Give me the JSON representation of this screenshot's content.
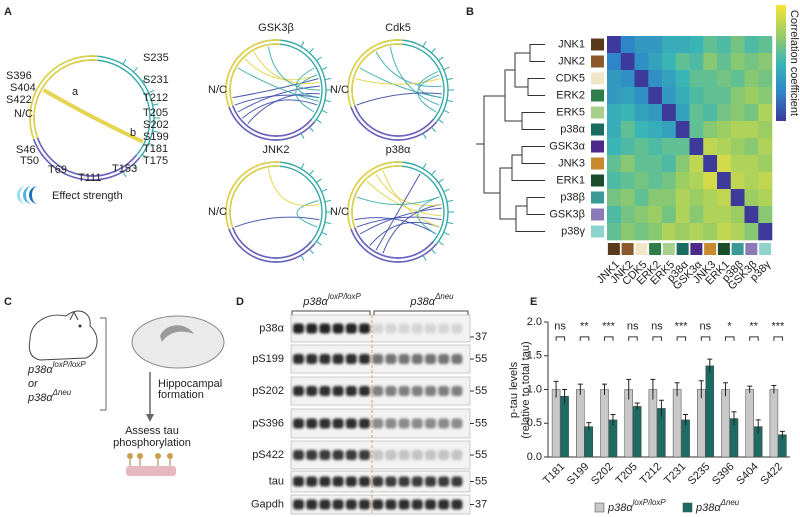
{
  "panel_labels": [
    "A",
    "B",
    "C",
    "D",
    "E"
  ],
  "panel_a": {
    "nc": "N/C",
    "sites_left": [
      "S396",
      "S404",
      "S422"
    ],
    "sites_bottom": [
      "S46",
      "T50",
      "T69",
      "T111",
      "T153"
    ],
    "sites_right": [
      "S235",
      "S231",
      "T212",
      "T205",
      "S202",
      "S199",
      "T181",
      "T175"
    ],
    "arc_a": "a",
    "arc_b": "b",
    "effect_label": "Effect strength",
    "kinases": [
      "GSK3β",
      "Cdk5",
      "JNK2",
      "p38α"
    ]
  },
  "panel_c": {
    "genotype_1": "p38α",
    "genotype_1_sup": "loxP/loxP",
    "or": "or",
    "genotype_2": "p38α",
    "genotype_2_sup": "Δneu",
    "step_1": [
      "Hippocampal",
      "formation"
    ],
    "step_2": [
      "Assess tau",
      "phosphorylation"
    ]
  },
  "panel_d": {
    "groups": [
      {
        "name": "p38α",
        "sup": "loxP/loxP"
      },
      {
        "name": "p38α",
        "sup": "Δneu"
      }
    ],
    "rows": [
      {
        "label": "p38α",
        "marker": 37
      },
      {
        "label": "pS199",
        "marker": 55
      },
      {
        "label": "pS202",
        "marker": 55
      },
      {
        "label": "pS396",
        "marker": 55
      },
      {
        "label": "pS422",
        "marker": 55
      },
      {
        "label": "tau",
        "marker": 55
      },
      {
        "label": "Gapdh",
        "marker": 37
      }
    ]
  },
  "chart_data": [
    {
      "type": "heatmap",
      "categories": [
        "JNK1",
        "JNK2",
        "CDK5",
        "ERK2",
        "ERK5",
        "p38α",
        "GSK3α",
        "JNK3",
        "ERK1",
        "p38β",
        "GSK3β",
        "p38γ"
      ],
      "colors": [
        "#5a3a1a",
        "#8b5a2b",
        "#f2e6c8",
        "#2e7d4a",
        "#a8d08d",
        "#1a6b60",
        "#4b2a8a",
        "#c88a2e",
        "#1a4d2a",
        "#3a9a96",
        "#8a7ab8",
        "#8fd4cc"
      ],
      "values": [
        [
          0,
          0.25,
          0.35,
          0.35,
          0.45,
          0.45,
          0.5,
          0.6,
          0.55,
          0.65,
          0.55,
          0.6
        ],
        [
          0.25,
          0,
          0.3,
          0.4,
          0.5,
          0.6,
          0.55,
          0.7,
          0.6,
          0.7,
          0.65,
          0.7
        ],
        [
          0.35,
          0.3,
          0,
          0.3,
          0.4,
          0.5,
          0.6,
          0.6,
          0.65,
          0.6,
          0.7,
          0.65
        ],
        [
          0.35,
          0.4,
          0.3,
          0,
          0.35,
          0.45,
          0.55,
          0.6,
          0.6,
          0.7,
          0.75,
          0.7
        ],
        [
          0.45,
          0.5,
          0.4,
          0.35,
          0,
          0.4,
          0.6,
          0.55,
          0.65,
          0.7,
          0.65,
          0.8
        ],
        [
          0.45,
          0.6,
          0.5,
          0.45,
          0.4,
          0,
          0.6,
          0.7,
          0.75,
          0.8,
          0.8,
          0.75
        ],
        [
          0.5,
          0.55,
          0.6,
          0.55,
          0.6,
          0.6,
          0,
          0.85,
          0.8,
          0.75,
          0.7,
          0.8
        ],
        [
          0.6,
          0.7,
          0.6,
          0.6,
          0.55,
          0.7,
          0.85,
          0,
          0.9,
          0.8,
          0.8,
          0.75
        ],
        [
          0.55,
          0.6,
          0.65,
          0.6,
          0.65,
          0.75,
          0.8,
          0.9,
          0,
          0.85,
          0.8,
          0.85
        ],
        [
          0.65,
          0.7,
          0.6,
          0.7,
          0.7,
          0.8,
          0.75,
          0.8,
          0.85,
          0,
          0.75,
          0.8
        ],
        [
          0.55,
          0.65,
          0.7,
          0.75,
          0.65,
          0.8,
          0.7,
          0.8,
          0.8,
          0.75,
          0,
          0.7
        ],
        [
          0.6,
          0.7,
          0.65,
          0.7,
          0.8,
          0.75,
          0.8,
          0.75,
          0.85,
          0.8,
          0.7,
          0
        ]
      ],
      "clim": [
        0,
        1
      ],
      "colorscale": [
        "#3d3a9c",
        "#2e86c8",
        "#3ab5b5",
        "#9ccd62",
        "#f7e43a"
      ],
      "colorbar_label": "Correlation coefficient"
    },
    {
      "type": "bar",
      "categories": [
        "T181",
        "S199",
        "S202",
        "T205",
        "T212",
        "T231",
        "S235",
        "S396",
        "S404",
        "S422"
      ],
      "series": [
        {
          "name": "p38α",
          "name_sup": "loxP/loxP",
          "color": "#c8c8c8",
          "values": [
            1.0,
            1.0,
            1.0,
            1.0,
            1.0,
            1.0,
            1.0,
            1.0,
            1.0,
            1.0
          ],
          "errors": [
            0.12,
            0.08,
            0.08,
            0.15,
            0.15,
            0.1,
            0.13,
            0.1,
            0.05,
            0.06
          ]
        },
        {
          "name": "p38α",
          "name_sup": "Δneu",
          "color": "#1d6b62",
          "values": [
            0.9,
            0.45,
            0.55,
            0.75,
            0.72,
            0.55,
            1.35,
            0.57,
            0.45,
            0.33
          ],
          "errors": [
            0.1,
            0.06,
            0.08,
            0.05,
            0.12,
            0.08,
            0.1,
            0.1,
            0.1,
            0.05
          ]
        }
      ],
      "annotations": [
        "ns",
        "**",
        "***",
        "ns",
        "ns",
        "***",
        "ns",
        "*",
        "**",
        "***"
      ],
      "ylabel": [
        "p-tau levels",
        "(relative to total tau)"
      ],
      "ylim": [
        0,
        2
      ],
      "yticks": [
        {
          "value": 0,
          "label": "0.0"
        },
        0.5,
        {
          "value": 1,
          "label": "1.0"
        },
        1.5,
        {
          "value": 2,
          "label": "2.0"
        }
      ]
    }
  ]
}
